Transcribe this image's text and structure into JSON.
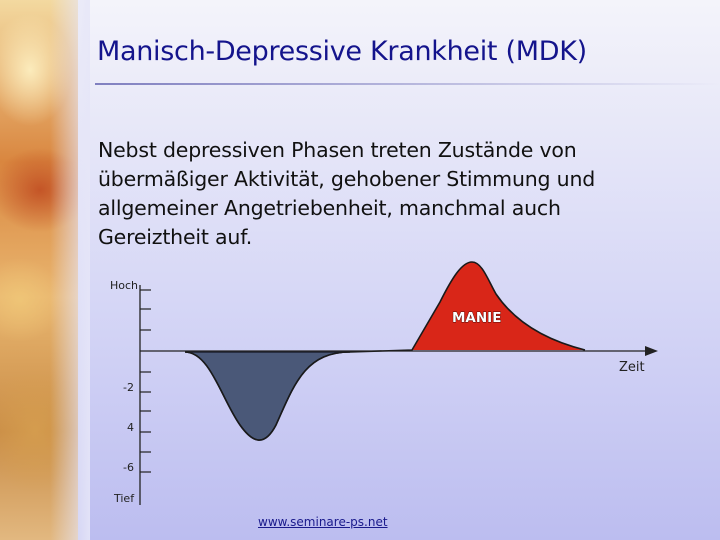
{
  "slide": {
    "title": "Manisch-Depressive Krankheit (MDK)",
    "body": "Nebst depressiven Phasen treten Zustände von übermäßiger Aktivität, gehobener Stimmung und allgemeiner Angetriebenheit, manchmal auch Gereiztheit auf.",
    "footer_link": "www.seminare-ps.net"
  },
  "diagram": {
    "top_label": "Hoch",
    "bottom_label": "Tief",
    "x_axis_label": "Zeit",
    "tick_labels": [
      "-2",
      "4",
      "-6"
    ],
    "mania_label": "MANIE",
    "colors": {
      "depression_fill": "#4a5878",
      "mania_fill": "#d92618",
      "axis": "#222222"
    }
  }
}
